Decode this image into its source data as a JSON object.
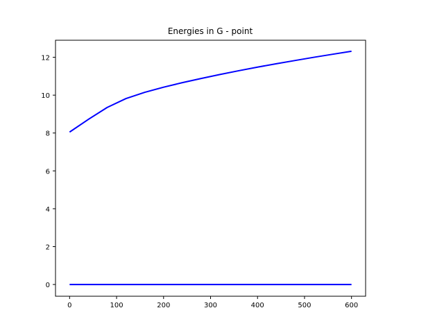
{
  "chart_data": {
    "type": "line",
    "title": "Energies in G - point",
    "xlabel": "",
    "ylabel": "",
    "xlim": [
      -30,
      630
    ],
    "ylim": [
      -0.62,
      12.9
    ],
    "xticks": [
      0,
      100,
      200,
      300,
      400,
      500,
      600
    ],
    "yticks": [
      0,
      2,
      4,
      6,
      8,
      10,
      12
    ],
    "grid": false,
    "line_color": "#0000ff",
    "series": [
      {
        "x": [
          0,
          40,
          80,
          120,
          160,
          200,
          240,
          280,
          320,
          360,
          400,
          440,
          480,
          520,
          560,
          600
        ],
        "values": [
          8.05,
          8.72,
          9.35,
          9.82,
          10.15,
          10.42,
          10.66,
          10.88,
          11.09,
          11.29,
          11.48,
          11.66,
          11.83,
          12.0,
          12.16,
          12.32
        ]
      },
      {
        "x": [
          0,
          600
        ],
        "values": [
          0,
          0
        ]
      }
    ]
  }
}
